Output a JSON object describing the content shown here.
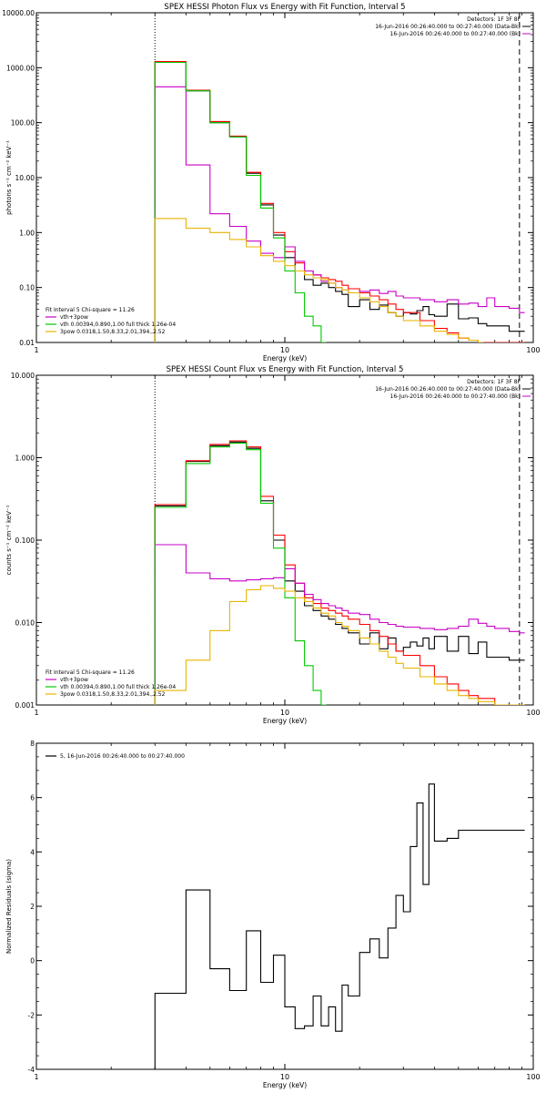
{
  "chart_data": [
    {
      "type": "line",
      "title": "SPEX HESSI Photon Flux vs Energy with Fit Function, Interval 5",
      "xlabel": "Energy (keV)",
      "ylabel": "photons s⁻¹ cm⁻² keV⁻¹",
      "xscale": "log",
      "yscale": "log",
      "xlim": [
        1,
        100
      ],
      "ylim": [
        0.01,
        10000
      ],
      "x_ticks": [
        "1",
        "10",
        "100"
      ],
      "y_ticks": [
        "10000.00",
        "1000.00",
        "100.00",
        "10.00",
        "1.00",
        "0.10",
        "0.01"
      ],
      "marker_lines": [
        {
          "x": 3,
          "style": "dotted"
        },
        {
          "x": 88,
          "style": "dashed"
        }
      ],
      "header_lines": [
        "Detectors: 1F 3F 8F",
        "16-Jun-2016 00:26:40.000 to 00:27:40.000 (Data-Bk)",
        "16-Jun-2016 00:26:40.000 to 00:27:40.000 (Bk)"
      ],
      "legend": {
        "position": "bottom-left",
        "title": "Fit Interval 5   Chi-square = 11.26",
        "entries": [
          {
            "label": "vth+3pow",
            "color": "#c800c8"
          },
          {
            "label": "vth 0.00394,0.890,1.00  full thick 1.26e-04",
            "color": "#00c800"
          },
          {
            "label": "3pow 0.0318,1.50,8.33,2.01,394.,2.52",
            "color": "#e8b400"
          }
        ]
      },
      "series": [
        {
          "color": "#000000",
          "x": [
            3,
            3.33,
            3.67,
            4,
            4.33,
            4.67,
            5,
            5.33,
            5.67,
            6,
            6.33,
            6.67,
            7,
            7.5,
            8,
            8.5,
            9,
            9.5,
            10,
            10.5,
            11,
            11.5,
            12,
            12.5,
            13,
            13.5,
            14,
            15,
            16,
            17,
            18,
            20,
            22,
            24,
            26,
            28,
            30,
            32,
            34,
            36,
            38,
            40,
            45,
            50,
            55,
            60,
            65,
            70,
            80,
            88
          ],
          "y": [
            1300,
            1300,
            1300,
            380,
            380,
            380,
            100,
            100,
            100,
            55,
            55,
            55,
            12,
            12,
            3.2,
            3.2,
            0.9,
            0.9,
            0.35,
            0.35,
            0.2,
            0.2,
            0.14,
            0.14,
            0.11,
            0.11,
            0.12,
            0.1,
            0.085,
            0.075,
            0.045,
            0.06,
            0.04,
            0.048,
            0.035,
            0.03,
            0.035,
            0.033,
            0.038,
            0.045,
            0.032,
            0.03,
            0.05,
            0.027,
            0.028,
            0.022,
            0.02,
            0.02,
            0.016,
            0.016
          ]
        },
        {
          "color": "#ff0000",
          "x": [
            3,
            4,
            5,
            6,
            7,
            8,
            9,
            10,
            11,
            12,
            13,
            14,
            15,
            16,
            17,
            18,
            20,
            22,
            24,
            26,
            28,
            30,
            35,
            40,
            45,
            50,
            55,
            60,
            70,
            80,
            88
          ],
          "y": [
            1300,
            390,
            105,
            57,
            12.5,
            3.4,
            1.0,
            0.45,
            0.28,
            0.2,
            0.17,
            0.15,
            0.14,
            0.13,
            0.11,
            0.095,
            0.08,
            0.07,
            0.06,
            0.05,
            0.04,
            0.035,
            0.025,
            0.018,
            0.015,
            0.012,
            0.011,
            0.01,
            0.01,
            0.01,
            0.01
          ]
        },
        {
          "color": "#c800c8",
          "x": [
            3,
            4,
            5,
            6,
            7,
            8,
            9,
            10,
            11,
            12,
            13,
            14,
            15,
            16,
            17,
            18,
            20,
            22,
            24,
            26,
            28,
            30,
            35,
            40,
            45,
            50,
            55,
            60,
            65,
            70,
            80,
            88
          ],
          "y": [
            450,
            17,
            2.2,
            1.3,
            0.7,
            0.42,
            0.35,
            0.55,
            0.3,
            0.2,
            0.17,
            0.13,
            0.12,
            0.1,
            0.09,
            0.08,
            0.085,
            0.09,
            0.078,
            0.085,
            0.07,
            0.065,
            0.06,
            0.055,
            0.06,
            0.05,
            0.052,
            0.045,
            0.065,
            0.045,
            0.042,
            0.035
          ]
        },
        {
          "color": "#00c800",
          "x": [
            3,
            4,
            5,
            6,
            7,
            8,
            9,
            10,
            11,
            12,
            13,
            14
          ],
          "y": [
            1250,
            380,
            100,
            55,
            11,
            2.8,
            0.8,
            0.2,
            0.08,
            0.03,
            0.02,
            0.01
          ]
        },
        {
          "color": "#e8b400",
          "x": [
            3,
            4,
            5,
            6,
            7,
            8,
            9,
            10,
            11,
            12,
            13,
            14,
            15,
            16,
            17,
            18,
            20,
            22,
            24,
            26,
            28,
            30,
            35,
            40,
            45,
            50,
            55,
            60
          ],
          "y": [
            1.8,
            1.2,
            1.0,
            0.75,
            0.55,
            0.38,
            0.3,
            0.25,
            0.2,
            0.17,
            0.15,
            0.14,
            0.12,
            0.1,
            0.09,
            0.08,
            0.065,
            0.055,
            0.045,
            0.035,
            0.03,
            0.025,
            0.02,
            0.016,
            0.014,
            0.012,
            0.011,
            0.01
          ]
        }
      ]
    },
    {
      "type": "line",
      "title": "SPEX HESSI Count Flux vs Energy with Fit Function, Interval 5",
      "xlabel": "Energy (keV)",
      "ylabel": "counts s⁻¹ cm⁻² keV⁻¹",
      "xscale": "log",
      "yscale": "log",
      "xlim": [
        1,
        100
      ],
      "ylim": [
        0.001,
        10
      ],
      "x_ticks": [
        "1",
        "10",
        "100"
      ],
      "y_ticks": [
        "10.000",
        "1.000",
        "0.100",
        "0.010",
        "0.001"
      ],
      "marker_lines": [
        {
          "x": 3,
          "style": "dotted"
        },
        {
          "x": 88,
          "style": "dashed"
        }
      ],
      "header_lines": [
        "Detectors: 1F 3F 8F",
        "16-Jun-2016 00:26:40.000 to 00:27:40.000 (Data-Bk)",
        "16-Jun-2016 00:26:40.000 to 00:27:40.000 (Bk)"
      ],
      "legend": {
        "position": "bottom-left",
        "title": "Fit Interval 5   Chi-square = 11.26",
        "entries": [
          {
            "label": "vth+3pow",
            "color": "#c800c8"
          },
          {
            "label": "vth 0.00394,0.890,1.00  full thick 1.26e-04",
            "color": "#00c800"
          },
          {
            "label": "3pow 0.0318,1.50,8.33,2.01,394.,2.52",
            "color": "#e8b400"
          }
        ]
      },
      "series": [
        {
          "color": "#000000",
          "x": [
            3,
            4,
            5,
            6,
            7,
            8,
            9,
            10,
            11,
            12,
            13,
            14,
            15,
            16,
            17,
            18,
            20,
            22,
            24,
            26,
            28,
            30,
            32,
            34,
            36,
            38,
            40,
            45,
            50,
            55,
            60,
            65,
            70,
            80,
            88
          ],
          "y": [
            0.26,
            0.9,
            1.4,
            1.55,
            1.3,
            0.3,
            0.1,
            0.032,
            0.024,
            0.016,
            0.014,
            0.012,
            0.011,
            0.0095,
            0.0085,
            0.0075,
            0.0055,
            0.0075,
            0.0048,
            0.0065,
            0.0045,
            0.005,
            0.0058,
            0.0052,
            0.0065,
            0.0048,
            0.0068,
            0.0045,
            0.0068,
            0.0042,
            0.0058,
            0.0038,
            0.0038,
            0.0035,
            0.0035
          ]
        },
        {
          "color": "#ff0000",
          "x": [
            3,
            4,
            5,
            6,
            7,
            8,
            9,
            10,
            11,
            12,
            13,
            14,
            15,
            16,
            17,
            18,
            20,
            22,
            24,
            26,
            28,
            30,
            35,
            40,
            45,
            50,
            55,
            60,
            70,
            80,
            88
          ],
          "y": [
            0.27,
            0.92,
            1.45,
            1.6,
            1.35,
            0.34,
            0.115,
            0.05,
            0.03,
            0.02,
            0.017,
            0.015,
            0.014,
            0.013,
            0.012,
            0.011,
            0.0095,
            0.008,
            0.0068,
            0.0055,
            0.0045,
            0.004,
            0.003,
            0.0022,
            0.0018,
            0.0015,
            0.0013,
            0.0012,
            0.001,
            0.001,
            0.001
          ]
        },
        {
          "color": "#c800c8",
          "x": [
            3,
            4,
            5,
            6,
            7,
            8,
            9,
            10,
            11,
            12,
            13,
            14,
            15,
            16,
            17,
            18,
            20,
            22,
            24,
            26,
            28,
            30,
            35,
            40,
            45,
            50,
            55,
            60,
            65,
            70,
            80,
            88
          ],
          "y": [
            0.088,
            0.04,
            0.034,
            0.032,
            0.033,
            0.034,
            0.035,
            0.045,
            0.03,
            0.022,
            0.019,
            0.017,
            0.016,
            0.015,
            0.014,
            0.013,
            0.0125,
            0.011,
            0.01,
            0.0095,
            0.009,
            0.0088,
            0.0085,
            0.0082,
            0.0085,
            0.009,
            0.011,
            0.0098,
            0.009,
            0.0085,
            0.0078,
            0.0075
          ]
        },
        {
          "color": "#00c800",
          "x": [
            3,
            4,
            5,
            6,
            7,
            8,
            9,
            10,
            11,
            12,
            13,
            14
          ],
          "y": [
            0.25,
            0.85,
            1.35,
            1.5,
            1.25,
            0.28,
            0.08,
            0.02,
            0.006,
            0.003,
            0.0015,
            0.001
          ]
        },
        {
          "color": "#e8b400",
          "x": [
            3,
            4,
            5,
            6,
            7,
            8,
            9,
            10,
            11,
            12,
            13,
            14,
            15,
            16,
            17,
            18,
            20,
            22,
            24,
            26,
            28,
            30,
            35,
            40,
            45,
            50,
            55,
            60,
            70,
            80,
            88
          ],
          "y": [
            0.0015,
            0.0035,
            0.008,
            0.018,
            0.025,
            0.028,
            0.026,
            0.024,
            0.02,
            0.018,
            0.015,
            0.013,
            0.012,
            0.01,
            0.009,
            0.008,
            0.0065,
            0.0055,
            0.0045,
            0.0038,
            0.0032,
            0.0028,
            0.0022,
            0.0018,
            0.0015,
            0.0013,
            0.0012,
            0.0011,
            0.001,
            0.001,
            0.001
          ]
        }
      ]
    },
    {
      "type": "line",
      "title": "",
      "xlabel": "Energy (keV)",
      "ylabel": "Normalized Residuals (sigma)",
      "xscale": "log",
      "yscale": "linear",
      "xlim": [
        1,
        100
      ],
      "ylim": [
        -4,
        8
      ],
      "x_ticks": [
        "1",
        "10",
        "100"
      ],
      "y_ticks": [
        "-4",
        "-2",
        "0",
        "2",
        "4",
        "6",
        "8"
      ],
      "legend": {
        "position": "top-left",
        "entries": [
          {
            "label": "5, 16-Jun-2016 00:26:40.000 to 00:27:40.000",
            "color": "#000000"
          }
        ]
      },
      "series": [
        {
          "color": "#000000",
          "x": [
            3,
            4,
            5,
            6,
            7,
            8,
            9,
            10,
            11,
            12,
            13,
            14,
            15,
            16,
            17,
            18,
            20,
            22,
            24,
            26,
            28,
            30,
            32,
            34,
            36,
            38,
            40,
            45,
            50,
            55,
            60,
            65,
            70,
            80,
            88
          ],
          "y": [
            -1.2,
            2.6,
            -0.3,
            -1.1,
            1.1,
            -0.8,
            0.2,
            -1.7,
            -2.5,
            -2.4,
            -1.3,
            -2.4,
            -1.7,
            -2.6,
            -0.9,
            -1.3,
            0.3,
            0.8,
            0.1,
            1.2,
            2.4,
            1.8,
            4.2,
            5.8,
            2.8,
            6.5,
            4.4,
            4.5,
            4.8,
            4.8,
            4.8,
            4.8,
            4.8,
            4.8,
            4.8
          ]
        }
      ]
    }
  ]
}
